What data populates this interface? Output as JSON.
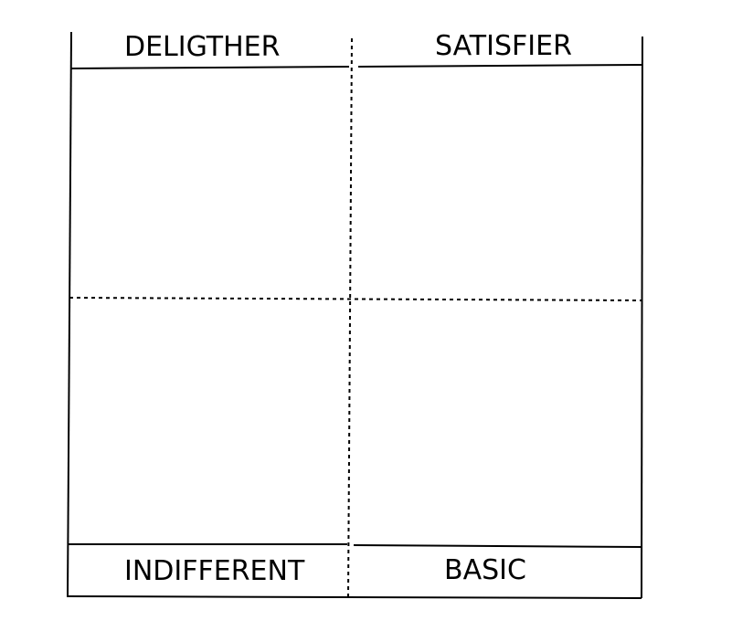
{
  "quadrants": {
    "top_left": "DELIGTHER",
    "top_right": "SATISFIER",
    "bottom_left": "INDIFFERENT",
    "bottom_right": "BASIC"
  },
  "colors": {
    "line": "#000000",
    "background": "#ffffff"
  }
}
